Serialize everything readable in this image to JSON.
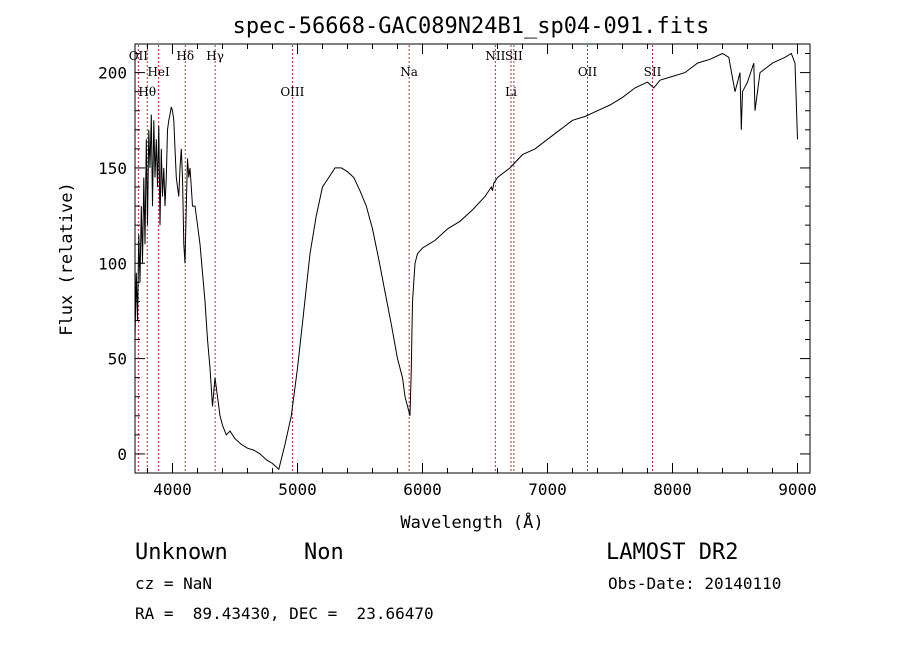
{
  "chart_data": {
    "type": "line",
    "title": "spec-56668-GAC089N24B1_sp04-091.fits",
    "xlabel": "Wavelength (Å)",
    "ylabel": "Flux (relative)",
    "xlim": [
      3700,
      9100
    ],
    "ylim": [
      -10,
      215
    ],
    "xticks": [
      4000,
      5000,
      6000,
      7000,
      8000,
      9000
    ],
    "yticks": [
      0,
      50,
      100,
      150,
      200
    ],
    "grid": false,
    "line_color": "#000000",
    "marker_color": "#b03030",
    "series": [
      {
        "x": [
          3700,
          3710,
          3720,
          3730,
          3740,
          3750,
          3760,
          3770,
          3780,
          3790,
          3800,
          3810,
          3820,
          3830,
          3840,
          3850,
          3860,
          3870,
          3880,
          3890,
          3900,
          3910,
          3920,
          3930,
          3940,
          3950,
          3960,
          3970,
          3980,
          3990,
          4000,
          4010,
          4020,
          4030,
          4040,
          4050,
          4060,
          4070,
          4080,
          4090,
          4100,
          4110,
          4120,
          4130,
          4140,
          4150,
          4160,
          4180,
          4200,
          4220,
          4240,
          4260,
          4280,
          4300,
          4320,
          4340,
          4360,
          4380,
          4400,
          4430,
          4460,
          4500,
          4550,
          4600,
          4650,
          4700,
          4750,
          4800,
          4850,
          4900,
          4950,
          5000,
          5050,
          5100,
          5150,
          5200,
          5250,
          5300,
          5350,
          5400,
          5450,
          5500,
          5550,
          5600,
          5650,
          5700,
          5750,
          5800,
          5840,
          5860,
          5880,
          5900,
          5910,
          5920,
          5940,
          5960,
          6000,
          6050,
          6100,
          6200,
          6300,
          6400,
          6500,
          6550,
          6560,
          6570,
          6600,
          6700,
          6800,
          6900,
          7000,
          7100,
          7200,
          7300,
          7400,
          7500,
          7600,
          7700,
          7800,
          7850,
          7900,
          8000,
          8100,
          8200,
          8300,
          8400,
          8450,
          8500,
          8540,
          8550,
          8560,
          8600,
          8650,
          8660,
          8700,
          8800,
          8900,
          8950,
          8980,
          9000
        ],
        "values": [
          60,
          95,
          70,
          115,
          90,
          130,
          100,
          145,
          110,
          165,
          120,
          170,
          150,
          178,
          130,
          175,
          145,
          165,
          140,
          172,
          120,
          160,
          135,
          150,
          130,
          145,
          170,
          175,
          178,
          182,
          180,
          175,
          160,
          145,
          140,
          135,
          150,
          160,
          145,
          110,
          100,
          130,
          155,
          145,
          150,
          140,
          130,
          130,
          120,
          110,
          95,
          80,
          60,
          45,
          25,
          40,
          30,
          20,
          15,
          10,
          12,
          8,
          5,
          3,
          2,
          0,
          -3,
          -5,
          -8,
          5,
          20,
          45,
          75,
          105,
          125,
          140,
          145,
          150,
          150,
          148,
          145,
          138,
          130,
          118,
          102,
          85,
          68,
          50,
          40,
          30,
          25,
          20,
          45,
          80,
          100,
          105,
          108,
          110,
          112,
          118,
          122,
          128,
          135,
          140,
          138,
          142,
          145,
          150,
          157,
          160,
          165,
          170,
          175,
          177,
          180,
          183,
          187,
          192,
          195,
          192,
          196,
          198,
          200,
          205,
          207,
          210,
          208,
          190,
          200,
          170,
          190,
          195,
          205,
          180,
          200,
          205,
          208,
          210,
          205,
          165
        ]
      }
    ],
    "lines": [
      {
        "label": "OII",
        "x": 3727
      },
      {
        "label": "Hθ",
        "x": 3798
      },
      {
        "label": "HeI",
        "x": 3889
      },
      {
        "label": "Hδ",
        "x": 4102
      },
      {
        "label": "Hγ",
        "x": 4341
      },
      {
        "label": "OIII",
        "x": 4959
      },
      {
        "label": "Na",
        "x": 5893
      },
      {
        "label": "NII",
        "x": 6583
      },
      {
        "label": "Li",
        "x": 6708
      },
      {
        "label": "SII",
        "x": 6731
      },
      {
        "label": "OII",
        "x": 7320
      },
      {
        "label": "SII",
        "x": 7840
      }
    ]
  },
  "info": {
    "class": "Unknown",
    "subclass": "Non",
    "survey": "LAMOST DR2",
    "cz": "cz = NaN",
    "obs_date": "Obs-Date: 20140110",
    "coords": "RA =  89.43430, DEC =  23.66470"
  }
}
